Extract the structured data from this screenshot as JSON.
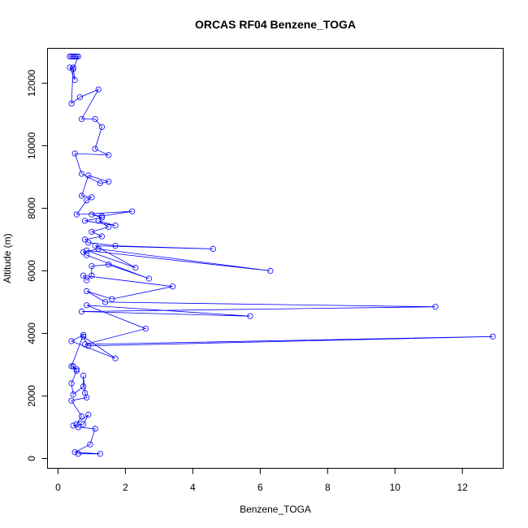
{
  "chart_data": {
    "type": "scatter",
    "title": "ORCAS RF04 Benzene_TOGA",
    "xlabel": "Benzene_TOGA",
    "ylabel": "Altitude (m)",
    "xlim": [
      -0.3,
      13.2
    ],
    "ylim": [
      -300,
      13100
    ],
    "x_ticks": [
      0,
      2,
      4,
      6,
      8,
      10,
      12
    ],
    "y_ticks": [
      0,
      2000,
      4000,
      6000,
      8000,
      10000,
      12000
    ],
    "grid": false,
    "line_color": "#0000ff",
    "marker": "open-circle",
    "series": [
      {
        "x": [
          0.35,
          0.4,
          0.45,
          0.5,
          0.55,
          0.6,
          0.45,
          0.35,
          0.5,
          0.45,
          0.4,
          0.65,
          1.2,
          0.7,
          1.1,
          1.3,
          1.1,
          1.5,
          0.5,
          0.7,
          1.25,
          1.5,
          0.9,
          0.7,
          1.0,
          0.85,
          0.55,
          2.2,
          1.3,
          1.0,
          1.3,
          0.8,
          1.7,
          1.2,
          1.5,
          1.0,
          1.3,
          0.8,
          0.9,
          1.7,
          4.6,
          1.1,
          2.3,
          0.85,
          6.3,
          1.2,
          0.75,
          0.85,
          2.7,
          1.5,
          1.0,
          1.0,
          0.85,
          0.75,
          3.4,
          1.6,
          0.85,
          1.4,
          11.2,
          0.7,
          5.7,
          0.85,
          2.6,
          0.8,
          12.9,
          0.9,
          0.75,
          1.7,
          0.4,
          0.75,
          0.4,
          0.55,
          0.45,
          0.55,
          0.4,
          0.45,
          0.75,
          0.75,
          0.8,
          0.85,
          0.4,
          0.7,
          0.55,
          0.9,
          0.75,
          0.45,
          0.6,
          1.1,
          0.95,
          0.5,
          1.25,
          0.6
        ],
        "y": [
          12850,
          12850,
          12850,
          12850,
          12850,
          12850,
          12450,
          12500,
          12100,
          12500,
          11350,
          11550,
          11800,
          10850,
          10850,
          10600,
          9900,
          9700,
          9750,
          9100,
          8800,
          8850,
          9050,
          8400,
          8350,
          8250,
          7800,
          7900,
          7750,
          7800,
          7700,
          7600,
          7450,
          7600,
          7400,
          7250,
          7100,
          7000,
          6900,
          6800,
          6700,
          6800,
          6100,
          6650,
          6000,
          6700,
          6600,
          6500,
          5750,
          6200,
          6150,
          5850,
          5700,
          5850,
          5500,
          5100,
          5350,
          5000,
          4850,
          4700,
          4550,
          4900,
          4150,
          3650,
          3900,
          3600,
          3900,
          3200,
          3750,
          3950,
          2950,
          2850,
          2950,
          2800,
          2400,
          2050,
          2300,
          2650,
          2100,
          1950,
          1850,
          1350,
          1100,
          1400,
          1100,
          1050,
          1000,
          950,
          450,
          200,
          150,
          150
        ]
      }
    ]
  }
}
